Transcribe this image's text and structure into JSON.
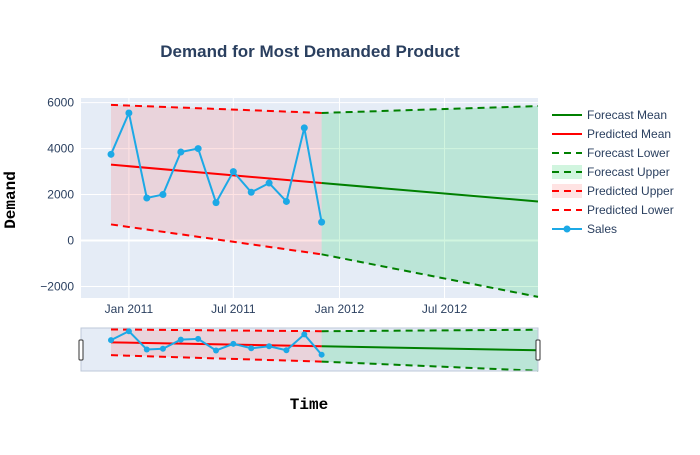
{
  "chart_data": {
    "type": "line",
    "title": "Demand for Most Demanded Product",
    "xlabel": "Time",
    "ylabel": "Demand",
    "x_axis": {
      "type": "date",
      "range": [
        "2010-10-10",
        "2012-12-10"
      ],
      "tick_values": [
        "2011-01-01",
        "2011-07-01",
        "2012-01-01",
        "2012-07-01"
      ],
      "tick_labels": [
        "Jan 2011",
        "Jul 2011",
        "Jan 2012",
        "Jul 2012"
      ]
    },
    "y_axis": {
      "range": [
        -2500,
        6200
      ],
      "tick_values": [
        -2000,
        0,
        2000,
        4000,
        6000
      ],
      "tick_labels": [
        "−2000",
        "0",
        "2000",
        "4000",
        "6000"
      ]
    },
    "grid": true,
    "legend_position": "right",
    "range_slider": true,
    "series": [
      {
        "name": "Forecast Mean",
        "color": "#008000",
        "style": "solid",
        "x": [
          "2011-12-01",
          "2012-12-10"
        ],
        "y": [
          2500,
          1700
        ]
      },
      {
        "name": "Predicted Mean",
        "color": "#ff0000",
        "style": "solid",
        "x": [
          "2010-12-01",
          "2011-12-01"
        ],
        "y": [
          3300,
          2500
        ]
      },
      {
        "name": "Forecast Lower",
        "color": "#008000",
        "style": "dash",
        "x": [
          "2011-12-01",
          "2012-12-10"
        ],
        "y": [
          -600,
          -2450
        ]
      },
      {
        "name": "Forecast Upper",
        "color": "#008000",
        "style": "dash",
        "fill": "rgba(0,200,80,0.18)",
        "x": [
          "2011-12-01",
          "2012-12-10"
        ],
        "y": [
          5550,
          5850
        ]
      },
      {
        "name": "Predicted Upper",
        "color": "#ff0000",
        "style": "dash",
        "fill": "rgba(255,100,100,0.18)",
        "x": [
          "2010-12-01",
          "2011-12-01"
        ],
        "y": [
          5900,
          5550
        ]
      },
      {
        "name": "Predicted Lower",
        "color": "#ff0000",
        "style": "dash",
        "x": [
          "2010-12-01",
          "2011-12-01"
        ],
        "y": [
          700,
          -600
        ]
      },
      {
        "name": "Sales",
        "color": "#1ca9e6",
        "style": "markers",
        "x": [
          "2010-12-01",
          "2011-01-01",
          "2011-02-01",
          "2011-03-01",
          "2011-04-01",
          "2011-05-01",
          "2011-06-01",
          "2011-07-01",
          "2011-08-01",
          "2011-09-01",
          "2011-10-01",
          "2011-11-01",
          "2011-12-01"
        ],
        "y": [
          3750,
          5550,
          1850,
          2000,
          3850,
          4000,
          1650,
          3000,
          2100,
          2500,
          1700,
          4900,
          800
        ]
      }
    ]
  }
}
